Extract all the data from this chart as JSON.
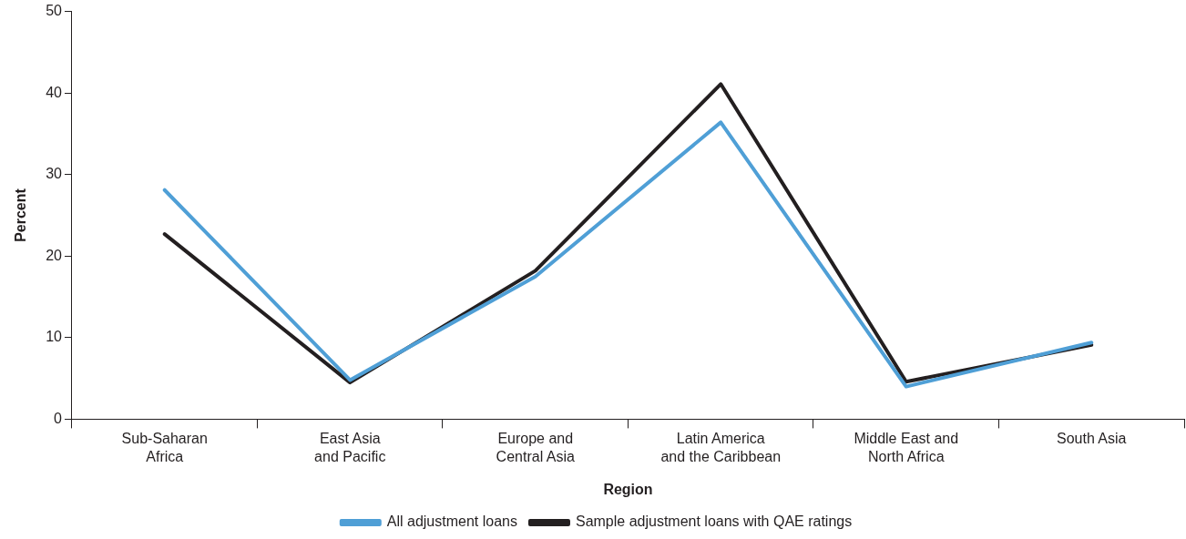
{
  "chart_data": {
    "type": "line",
    "xlabel": "Region",
    "ylabel": "Percent",
    "categories": [
      "Sub-Saharan Africa",
      "East Asia and Pacific",
      "Europe and Central Asia",
      "Latin America and the Caribbean",
      "Middle East and North Africa",
      "South Asia"
    ],
    "series": [
      {
        "name": "All adjustment loans",
        "color": "#4f9fd6",
        "values": [
          28.1,
          4.8,
          17.5,
          36.4,
          4.0,
          9.4
        ]
      },
      {
        "name": "Sample adjustment loans with QAE ratings",
        "color": "#231f20",
        "values": [
          22.7,
          4.5,
          18.2,
          41.1,
          4.6,
          9.1
        ]
      }
    ],
    "ylim": [
      0,
      50
    ],
    "yticks": [
      0,
      10,
      20,
      30,
      40,
      50
    ],
    "grid": false,
    "legend": "bottom",
    "marker": "none",
    "line_style": "solid"
  }
}
